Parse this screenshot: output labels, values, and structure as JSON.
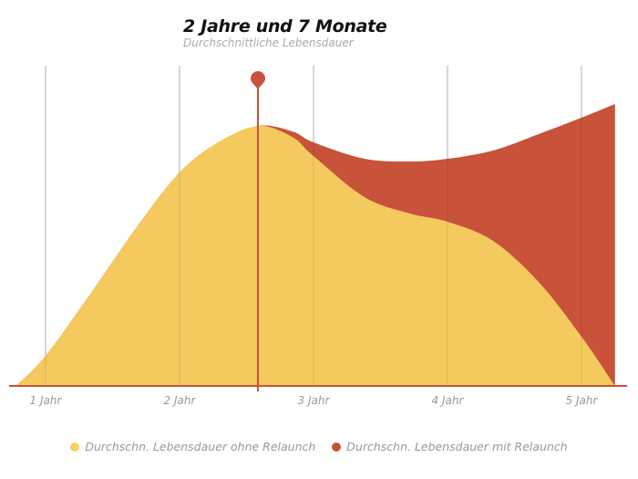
{
  "chart_data": {
    "type": "area",
    "title": "2 Jahre und 7 Monate",
    "subtitle": "Durchschnittliche Lebensdauer",
    "xlabel": "",
    "ylabel": "",
    "xlim": [
      0.78,
      5.25
    ],
    "ylim": [
      0,
      115
    ],
    "grid": true,
    "x_ticks": [
      1,
      2,
      3,
      4,
      5
    ],
    "x_tick_labels": [
      "1 Jahr",
      "2 Jahr",
      "3 Jahr",
      "4 Jahr",
      "5 Jahr"
    ],
    "marker_x": 2.585,
    "legend_position": "bottom",
    "series": [
      {
        "name": "Durchschn. Lebensdauer mit Relaunch",
        "color": "#c8523a",
        "x": [
          0.78,
          1.0,
          1.34,
          1.68,
          2.0,
          2.29,
          2.585,
          2.84,
          3.0,
          3.38,
          3.72,
          4.0,
          4.34,
          4.68,
          5.0,
          5.25
        ],
        "y": [
          0,
          11,
          34,
          58,
          78,
          89,
          95,
          93,
          89,
          83,
          82,
          83,
          86,
          92,
          98,
          103
        ]
      },
      {
        "name": "Durchschn. Lebensdauer ohne Relaunch",
        "color": "#f7d060",
        "x": [
          0.78,
          1.0,
          1.34,
          1.68,
          2.0,
          2.29,
          2.585,
          2.84,
          3.0,
          3.38,
          3.72,
          4.0,
          4.34,
          4.68,
          5.0,
          5.25
        ],
        "y": [
          0,
          11,
          34,
          58,
          78,
          89,
          95,
          91,
          84,
          69,
          63,
          60,
          53,
          38,
          18,
          0
        ]
      }
    ]
  }
}
